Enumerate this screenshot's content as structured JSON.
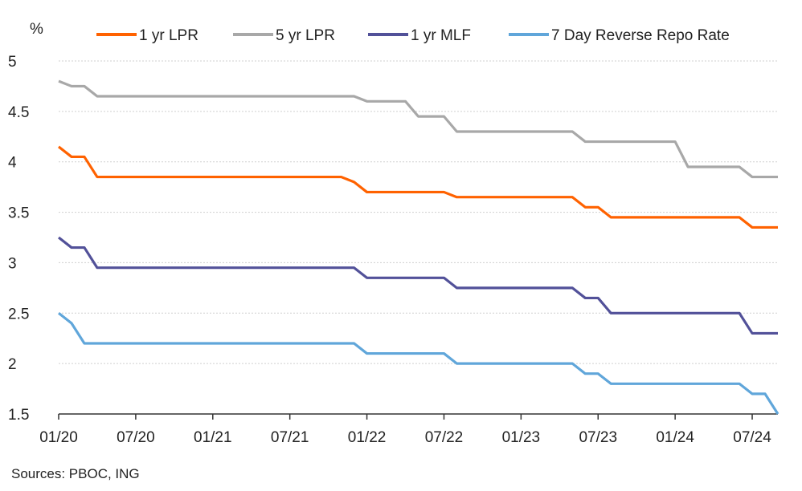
{
  "chart_data": {
    "type": "line",
    "title": "",
    "ylabel": "%",
    "xlabel": "",
    "ylim": [
      1.5,
      5
    ],
    "yticks": [
      "1.5",
      "2",
      "2.5",
      "3",
      "3.5",
      "4",
      "4.5",
      "5"
    ],
    "xticks": [
      "01/20",
      "07/20",
      "01/21",
      "07/21",
      "01/22",
      "07/22",
      "01/23",
      "07/23",
      "01/24",
      "07/24"
    ],
    "x_start": "2020-01",
    "x_end": "2024-10",
    "grid": "horizontal",
    "legend_position": "top",
    "series": [
      {
        "name": "1 yr LPR",
        "color": "#FF6200",
        "points": [
          [
            0,
            4.15
          ],
          [
            1,
            4.05
          ],
          [
            2,
            4.05
          ],
          [
            3,
            3.85
          ],
          [
            4,
            3.85
          ],
          [
            5,
            3.85
          ],
          [
            6,
            3.85
          ],
          [
            7,
            3.85
          ],
          [
            8,
            3.85
          ],
          [
            9,
            3.85
          ],
          [
            10,
            3.85
          ],
          [
            11,
            3.85
          ],
          [
            12,
            3.85
          ],
          [
            13,
            3.85
          ],
          [
            14,
            3.85
          ],
          [
            15,
            3.85
          ],
          [
            16,
            3.85
          ],
          [
            17,
            3.85
          ],
          [
            18,
            3.85
          ],
          [
            19,
            3.85
          ],
          [
            20,
            3.85
          ],
          [
            21,
            3.85
          ],
          [
            22,
            3.85
          ],
          [
            23,
            3.8
          ],
          [
            24,
            3.7
          ],
          [
            25,
            3.7
          ],
          [
            26,
            3.7
          ],
          [
            27,
            3.7
          ],
          [
            28,
            3.7
          ],
          [
            29,
            3.7
          ],
          [
            30,
            3.7
          ],
          [
            31,
            3.65
          ],
          [
            32,
            3.65
          ],
          [
            33,
            3.65
          ],
          [
            34,
            3.65
          ],
          [
            35,
            3.65
          ],
          [
            36,
            3.65
          ],
          [
            37,
            3.65
          ],
          [
            38,
            3.65
          ],
          [
            39,
            3.65
          ],
          [
            40,
            3.65
          ],
          [
            41,
            3.55
          ],
          [
            42,
            3.55
          ],
          [
            43,
            3.45
          ],
          [
            44,
            3.45
          ],
          [
            45,
            3.45
          ],
          [
            46,
            3.45
          ],
          [
            47,
            3.45
          ],
          [
            48,
            3.45
          ],
          [
            49,
            3.45
          ],
          [
            50,
            3.45
          ],
          [
            51,
            3.45
          ],
          [
            52,
            3.45
          ],
          [
            53,
            3.45
          ],
          [
            54,
            3.35
          ],
          [
            55,
            3.35
          ],
          [
            56,
            3.35
          ]
        ]
      },
      {
        "name": "5 yr LPR",
        "color": "#A8A8A8",
        "points": [
          [
            0,
            4.8
          ],
          [
            1,
            4.75
          ],
          [
            2,
            4.75
          ],
          [
            3,
            4.65
          ],
          [
            4,
            4.65
          ],
          [
            5,
            4.65
          ],
          [
            6,
            4.65
          ],
          [
            7,
            4.65
          ],
          [
            8,
            4.65
          ],
          [
            9,
            4.65
          ],
          [
            10,
            4.65
          ],
          [
            11,
            4.65
          ],
          [
            12,
            4.65
          ],
          [
            13,
            4.65
          ],
          [
            14,
            4.65
          ],
          [
            15,
            4.65
          ],
          [
            16,
            4.65
          ],
          [
            17,
            4.65
          ],
          [
            18,
            4.65
          ],
          [
            19,
            4.65
          ],
          [
            20,
            4.65
          ],
          [
            21,
            4.65
          ],
          [
            22,
            4.65
          ],
          [
            23,
            4.65
          ],
          [
            24,
            4.6
          ],
          [
            25,
            4.6
          ],
          [
            26,
            4.6
          ],
          [
            27,
            4.6
          ],
          [
            28,
            4.45
          ],
          [
            29,
            4.45
          ],
          [
            30,
            4.45
          ],
          [
            31,
            4.3
          ],
          [
            32,
            4.3
          ],
          [
            33,
            4.3
          ],
          [
            34,
            4.3
          ],
          [
            35,
            4.3
          ],
          [
            36,
            4.3
          ],
          [
            37,
            4.3
          ],
          [
            38,
            4.3
          ],
          [
            39,
            4.3
          ],
          [
            40,
            4.3
          ],
          [
            41,
            4.2
          ],
          [
            42,
            4.2
          ],
          [
            43,
            4.2
          ],
          [
            44,
            4.2
          ],
          [
            45,
            4.2
          ],
          [
            46,
            4.2
          ],
          [
            47,
            4.2
          ],
          [
            48,
            4.2
          ],
          [
            49,
            3.95
          ],
          [
            50,
            3.95
          ],
          [
            51,
            3.95
          ],
          [
            52,
            3.95
          ],
          [
            53,
            3.95
          ],
          [
            54,
            3.85
          ],
          [
            55,
            3.85
          ],
          [
            56,
            3.85
          ]
        ]
      },
      {
        "name": "1 yr MLF",
        "color": "#525199",
        "points": [
          [
            0,
            3.25
          ],
          [
            1,
            3.15
          ],
          [
            2,
            3.15
          ],
          [
            3,
            2.95
          ],
          [
            4,
            2.95
          ],
          [
            5,
            2.95
          ],
          [
            6,
            2.95
          ],
          [
            7,
            2.95
          ],
          [
            8,
            2.95
          ],
          [
            9,
            2.95
          ],
          [
            10,
            2.95
          ],
          [
            11,
            2.95
          ],
          [
            12,
            2.95
          ],
          [
            13,
            2.95
          ],
          [
            14,
            2.95
          ],
          [
            15,
            2.95
          ],
          [
            16,
            2.95
          ],
          [
            17,
            2.95
          ],
          [
            18,
            2.95
          ],
          [
            19,
            2.95
          ],
          [
            20,
            2.95
          ],
          [
            21,
            2.95
          ],
          [
            22,
            2.95
          ],
          [
            23,
            2.95
          ],
          [
            24,
            2.85
          ],
          [
            25,
            2.85
          ],
          [
            26,
            2.85
          ],
          [
            27,
            2.85
          ],
          [
            28,
            2.85
          ],
          [
            29,
            2.85
          ],
          [
            30,
            2.85
          ],
          [
            31,
            2.75
          ],
          [
            32,
            2.75
          ],
          [
            33,
            2.75
          ],
          [
            34,
            2.75
          ],
          [
            35,
            2.75
          ],
          [
            36,
            2.75
          ],
          [
            37,
            2.75
          ],
          [
            38,
            2.75
          ],
          [
            39,
            2.75
          ],
          [
            40,
            2.75
          ],
          [
            41,
            2.65
          ],
          [
            42,
            2.65
          ],
          [
            43,
            2.5
          ],
          [
            44,
            2.5
          ],
          [
            45,
            2.5
          ],
          [
            46,
            2.5
          ],
          [
            47,
            2.5
          ],
          [
            48,
            2.5
          ],
          [
            49,
            2.5
          ],
          [
            50,
            2.5
          ],
          [
            51,
            2.5
          ],
          [
            52,
            2.5
          ],
          [
            53,
            2.5
          ],
          [
            54,
            2.3
          ],
          [
            55,
            2.3
          ],
          [
            56,
            2.3
          ]
        ]
      },
      {
        "name": "7 Day Reverse Repo Rate",
        "color": "#60A6DA",
        "points": [
          [
            0,
            2.5
          ],
          [
            1,
            2.4
          ],
          [
            2,
            2.2
          ],
          [
            3,
            2.2
          ],
          [
            4,
            2.2
          ],
          [
            5,
            2.2
          ],
          [
            6,
            2.2
          ],
          [
            7,
            2.2
          ],
          [
            8,
            2.2
          ],
          [
            9,
            2.2
          ],
          [
            10,
            2.2
          ],
          [
            11,
            2.2
          ],
          [
            12,
            2.2
          ],
          [
            13,
            2.2
          ],
          [
            14,
            2.2
          ],
          [
            15,
            2.2
          ],
          [
            16,
            2.2
          ],
          [
            17,
            2.2
          ],
          [
            18,
            2.2
          ],
          [
            19,
            2.2
          ],
          [
            20,
            2.2
          ],
          [
            21,
            2.2
          ],
          [
            22,
            2.2
          ],
          [
            23,
            2.2
          ],
          [
            24,
            2.1
          ],
          [
            25,
            2.1
          ],
          [
            26,
            2.1
          ],
          [
            27,
            2.1
          ],
          [
            28,
            2.1
          ],
          [
            29,
            2.1
          ],
          [
            30,
            2.1
          ],
          [
            31,
            2.0
          ],
          [
            32,
            2.0
          ],
          [
            33,
            2.0
          ],
          [
            34,
            2.0
          ],
          [
            35,
            2.0
          ],
          [
            36,
            2.0
          ],
          [
            37,
            2.0
          ],
          [
            38,
            2.0
          ],
          [
            39,
            2.0
          ],
          [
            40,
            2.0
          ],
          [
            41,
            1.9
          ],
          [
            42,
            1.9
          ],
          [
            43,
            1.8
          ],
          [
            44,
            1.8
          ],
          [
            45,
            1.8
          ],
          [
            46,
            1.8
          ],
          [
            47,
            1.8
          ],
          [
            48,
            1.8
          ],
          [
            49,
            1.8
          ],
          [
            50,
            1.8
          ],
          [
            51,
            1.8
          ],
          [
            52,
            1.8
          ],
          [
            53,
            1.8
          ],
          [
            54,
            1.7
          ],
          [
            55,
            1.7
          ],
          [
            56,
            1.5
          ]
        ]
      }
    ],
    "x_index_note": "x values are months since 01/20",
    "source": "Sources: PBOC, ING"
  }
}
